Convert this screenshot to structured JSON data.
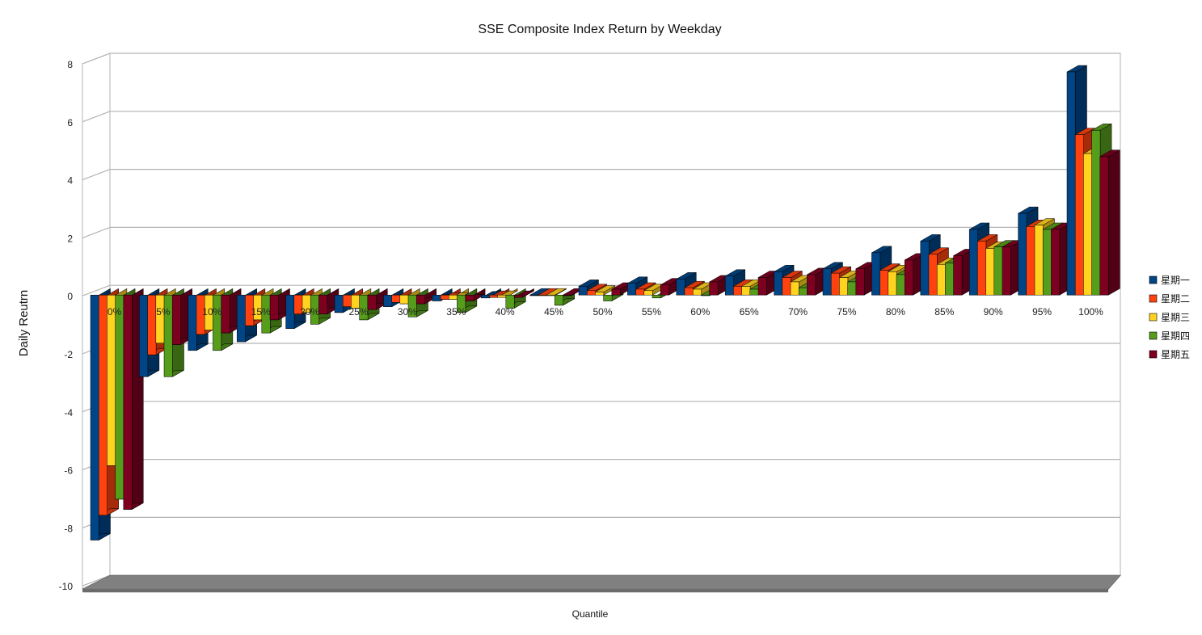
{
  "chart_data": {
    "type": "bar",
    "title": "SSE Composite Index Return by Weekday",
    "xlabel": "Quantile",
    "ylabel": "Daily Reutrn",
    "ylim": [
      -10,
      8
    ],
    "yticks": [
      8,
      6,
      4,
      2,
      0,
      -2,
      -4,
      -6,
      -8,
      -10
    ],
    "grid": true,
    "style": "3d-column",
    "legend_position": "right",
    "categories": [
      "0%",
      "5%",
      "10%",
      "15%",
      "20%",
      "25%",
      "30%",
      "35%",
      "40%",
      "45%",
      "50%",
      "55%",
      "60%",
      "65%",
      "70%",
      "75%",
      "80%",
      "85%",
      "90%",
      "95%",
      "100%"
    ],
    "series": [
      {
        "name": "星期一",
        "color": "#004586",
        "values": [
          -8.4,
          -2.8,
          -1.9,
          -1.6,
          -1.15,
          -0.6,
          -0.4,
          -0.2,
          -0.1,
          0.0,
          0.3,
          0.4,
          0.55,
          0.65,
          0.8,
          0.9,
          1.45,
          1.85,
          2.25,
          2.8,
          7.65
        ]
      },
      {
        "name": "星期二",
        "color": "#ff420e",
        "values": [
          -7.55,
          -2.05,
          -1.35,
          -1.05,
          -0.65,
          -0.4,
          -0.25,
          -0.15,
          -0.08,
          0.0,
          0.15,
          0.2,
          0.25,
          0.3,
          0.6,
          0.75,
          0.85,
          1.4,
          1.85,
          2.35,
          5.5
        ]
      },
      {
        "name": "星期三",
        "color": "#ffd320",
        "values": [
          -5.85,
          -1.65,
          -1.2,
          -0.85,
          -0.6,
          -0.45,
          -0.3,
          -0.15,
          -0.08,
          0.0,
          0.1,
          0.15,
          0.2,
          0.3,
          0.45,
          0.6,
          0.8,
          1.05,
          1.6,
          2.4,
          4.85
        ]
      },
      {
        "name": "星期四",
        "color": "#579d1c",
        "values": [
          -7.0,
          -2.8,
          -1.9,
          -1.3,
          -1.0,
          -0.85,
          -0.75,
          -0.6,
          -0.45,
          -0.35,
          -0.2,
          -0.1,
          0.0,
          0.2,
          0.25,
          0.45,
          0.7,
          1.1,
          1.65,
          2.25,
          5.65
        ]
      },
      {
        "name": "星期五",
        "color": "#7e0021",
        "values": [
          -7.35,
          -1.7,
          -1.3,
          -0.85,
          -0.65,
          -0.5,
          -0.3,
          -0.2,
          -0.08,
          0.0,
          0.2,
          0.35,
          0.45,
          0.6,
          0.7,
          0.9,
          1.2,
          1.35,
          1.65,
          2.25,
          4.75
        ]
      }
    ]
  }
}
